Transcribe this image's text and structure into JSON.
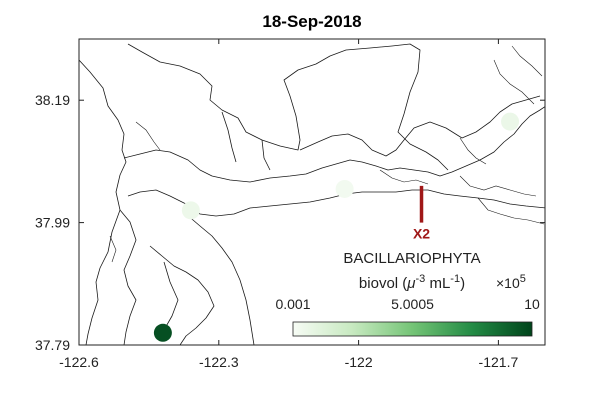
{
  "title": "18-Sep-2018",
  "axes": {
    "xlim": [
      -122.6,
      -121.6
    ],
    "ylim": [
      37.79,
      38.29
    ],
    "x_ticks": [
      {
        "value": -122.6,
        "label": "-122.6"
      },
      {
        "value": -122.3,
        "label": "-122.3"
      },
      {
        "value": -122.0,
        "label": "-122"
      },
      {
        "value": -121.7,
        "label": "-121.7"
      }
    ],
    "y_ticks": [
      {
        "value": 37.79,
        "label": "37.79"
      },
      {
        "value": 37.99,
        "label": "37.99"
      },
      {
        "value": 38.19,
        "label": "38.19"
      }
    ]
  },
  "colorbar": {
    "title": "BACILLARIOPHYTA",
    "units_prefix": "biovol (",
    "units_mu": "μ",
    "units_exp1": "-3",
    "units_mid": " mL",
    "units_exp2": "-1",
    "units_suffix": ")",
    "multiplier_base": "×10",
    "multiplier_exp": "5",
    "tick_labels": [
      "0.001",
      "5.0005",
      "10"
    ],
    "range": [
      0.001,
      10
    ],
    "color_low": "#f7fcf5",
    "color_high": "#00441b"
  },
  "marker": {
    "label": "X2",
    "lon": -121.865,
    "lat_top": 38.05,
    "lat_bottom": 37.99,
    "color": "#a01818"
  },
  "samples": [
    {
      "lon": -121.675,
      "lat": 38.155,
      "value": 0.6
    },
    {
      "lon": -122.03,
      "lat": 38.045,
      "value": 0.25
    },
    {
      "lon": -122.36,
      "lat": 38.01,
      "value": 0.5
    },
    {
      "lon": -122.42,
      "lat": 37.81,
      "value": 9.6
    }
  ]
}
